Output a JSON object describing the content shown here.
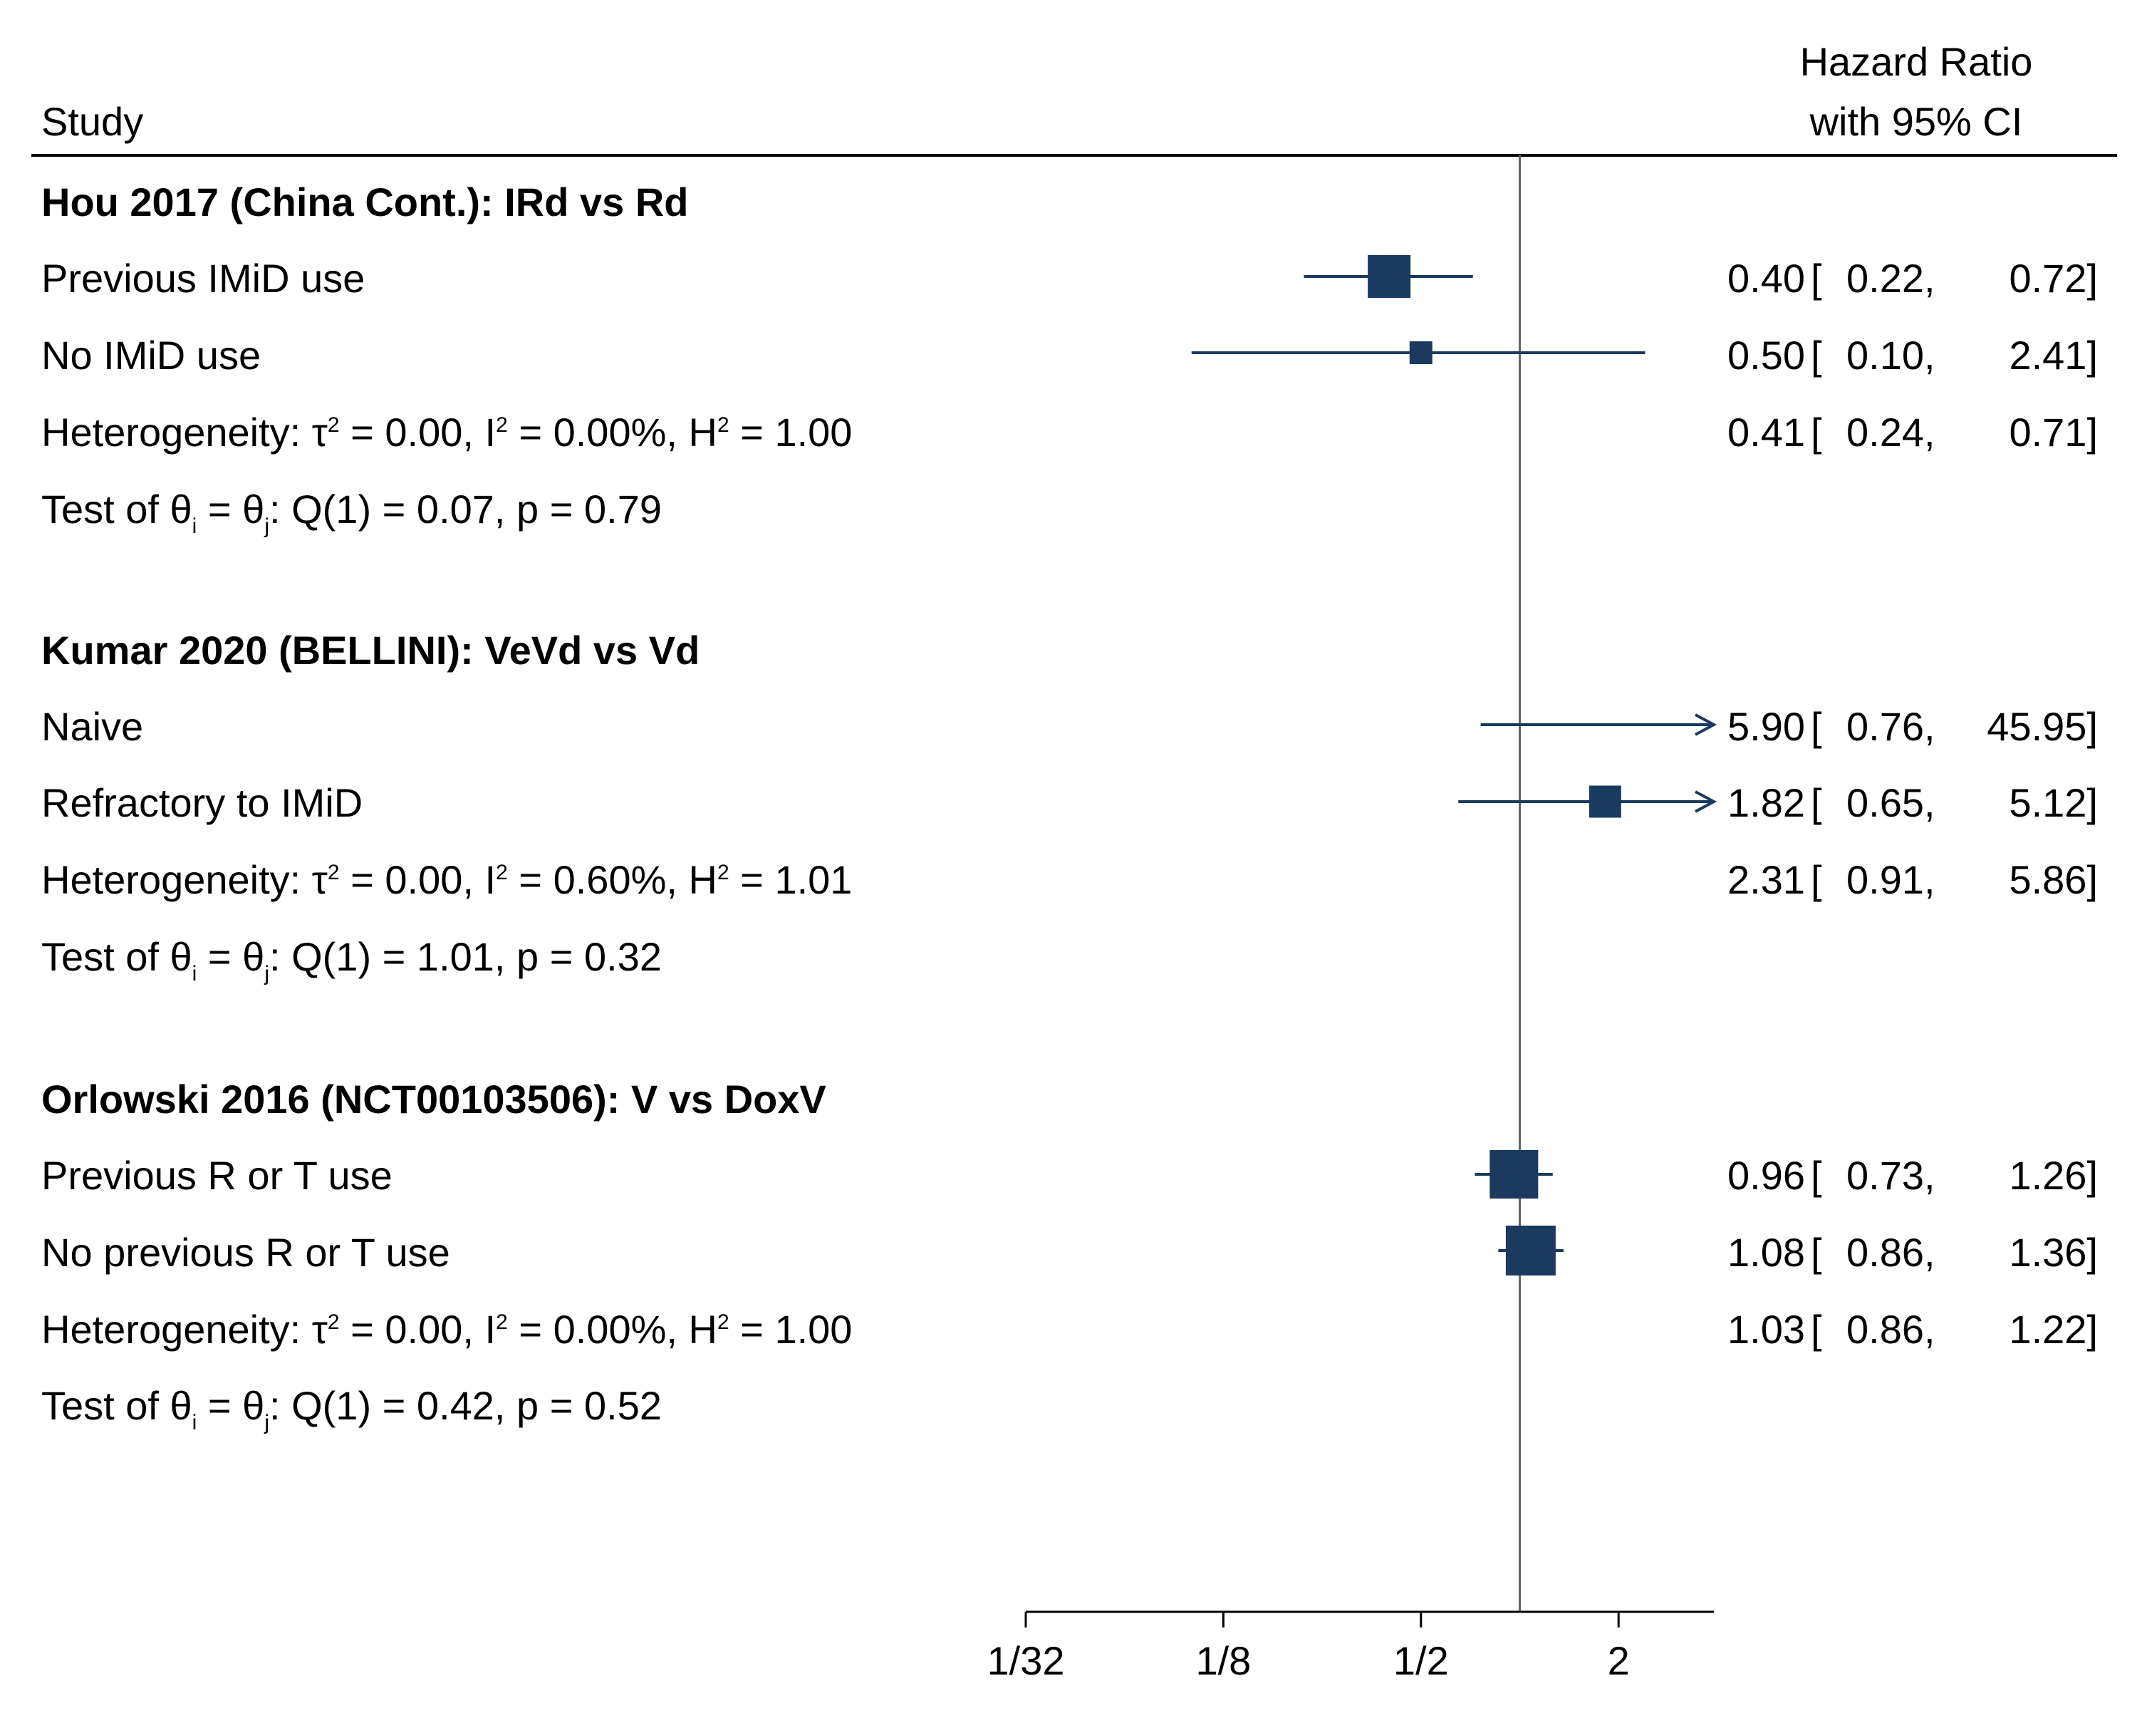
{
  "chart_data": {
    "type": "forest",
    "header": {
      "study": "Study",
      "effect_line1": "Hazard Ratio",
      "effect_line2": "with 95% CI"
    },
    "marker_color": "#1a3a5f",
    "xscale": "log2",
    "xlim": [
      0.03125,
      4
    ],
    "null_value": 1,
    "xticks": [
      {
        "value": 0.03125,
        "label": "1/32"
      },
      {
        "value": 0.125,
        "label": "1/8"
      },
      {
        "value": 0.5,
        "label": "1/2"
      },
      {
        "value": 2,
        "label": "2"
      }
    ],
    "groups": [
      {
        "title": "Hou 2017 (China Cont.): IRd vs Rd",
        "studies": [
          {
            "label": "Previous IMiD use",
            "hr": 0.4,
            "lo": 0.22,
            "hi": 0.72,
            "hr_text": "0.40",
            "lo_text": "0.22,",
            "hi_text": "0.72]",
            "weight": 0.6
          },
          {
            "label": "No IMiD use",
            "hr": 0.5,
            "lo": 0.1,
            "hi": 2.41,
            "hr_text": "0.50",
            "lo_text": "0.10,",
            "hi_text": "2.41]",
            "weight": 0.32
          }
        ],
        "heterogeneity": {
          "pre": "Heterogeneity: τ",
          "mid1": " = 0.00, I",
          "mid2": " = 0.00%, H",
          "post": " = 1.00",
          "sup": "2"
        },
        "overall": {
          "hr_text": "0.41",
          "lo_text": "0.24,",
          "hi_text": "0.71]"
        },
        "test": {
          "pre": "Test of θ",
          "i": "i",
          "eq": " = θ",
          "j": "j",
          "post": ": Q(1) = 0.07, p = 0.79"
        }
      },
      {
        "title": "Kumar 2020 (BELLINI): VeVd vs Vd",
        "studies": [
          {
            "label": "Naive",
            "hr": 5.9,
            "lo": 0.76,
            "hi": 45.95,
            "hr_text": "5.90",
            "lo_text": "0.76,",
            "hi_text": "45.95]",
            "weight": 0
          },
          {
            "label": "Refractory to IMiD",
            "hr": 1.82,
            "lo": 0.65,
            "hi": 5.12,
            "hr_text": "1.82",
            "lo_text": "0.65,",
            "hi_text": "5.12]",
            "weight": 0.45
          }
        ],
        "heterogeneity": {
          "pre": "Heterogeneity: τ",
          "mid1": " = 0.00, I",
          "mid2": " = 0.60%, H",
          "post": " = 1.01",
          "sup": "2"
        },
        "overall": {
          "hr_text": "2.31",
          "lo_text": "0.91,",
          "hi_text": "5.86]"
        },
        "test": {
          "pre": "Test of θ",
          "i": "i",
          "eq": " = θ",
          "j": "j",
          "post": ": Q(1) = 1.01, p = 0.32"
        }
      },
      {
        "title": "Orlowski 2016 (NCT00103506): V vs DoxV",
        "studies": [
          {
            "label": "Previous R or T use",
            "hr": 0.96,
            "lo": 0.73,
            "hi": 1.26,
            "hr_text": "0.96",
            "lo_text": "0.73,",
            "hi_text": "1.26]",
            "weight": 0.68
          },
          {
            "label": "No previous R or T use",
            "hr": 1.08,
            "lo": 0.86,
            "hi": 1.36,
            "hr_text": "1.08",
            "lo_text": "0.86,",
            "hi_text": "1.36]",
            "weight": 0.7
          }
        ],
        "heterogeneity": {
          "pre": "Heterogeneity: τ",
          "mid1": " = 0.00, I",
          "mid2": " = 0.00%, H",
          "post": " = 1.00",
          "sup": "2"
        },
        "overall": {
          "hr_text": "1.03",
          "lo_text": "0.86,",
          "hi_text": "1.22]"
        },
        "test": {
          "pre": "Test of θ",
          "i": "i",
          "eq": " = θ",
          "j": "j",
          "post": ": Q(1) = 0.42, p = 0.52"
        }
      }
    ]
  }
}
